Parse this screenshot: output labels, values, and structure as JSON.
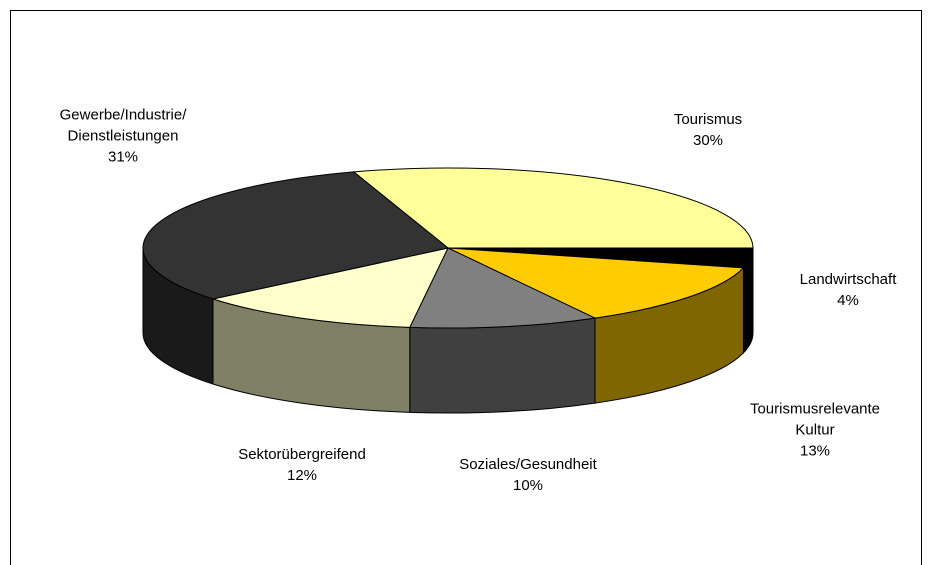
{
  "chart_data": {
    "type": "pie3d",
    "categories": [
      "Tourismus",
      "Landwirtschaft",
      "Tourismusrelevante\nKultur",
      "Soziales/Gesundheit",
      "Sektorübergreifend",
      "Gewerbe/Industrie/\nDienstleistungen"
    ],
    "values": [
      30,
      4,
      13,
      10,
      12,
      31
    ],
    "value_labels": [
      "30%",
      "4%",
      "13%",
      "10%",
      "12%",
      "31%"
    ],
    "colors": [
      "#ffff99",
      "#000000",
      "#ffcc00",
      "#808080",
      "#ffffcc",
      "#333333"
    ]
  }
}
